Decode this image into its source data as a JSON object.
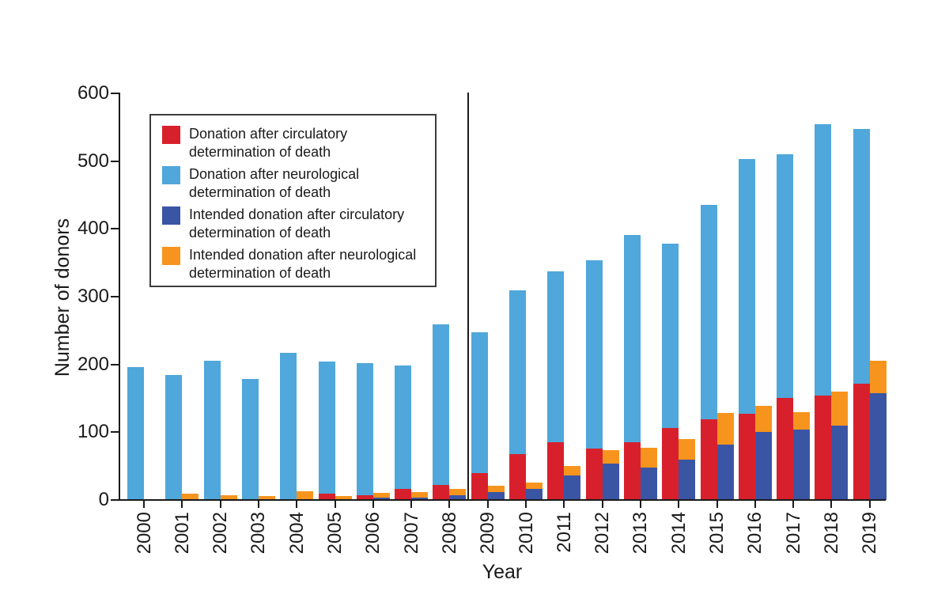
{
  "page": {
    "background": "#ffffff"
  },
  "chart_data": {
    "type": "bar",
    "variant": "grouped-stacked",
    "title": "",
    "xlabel": "Year",
    "ylabel": "Number of donors",
    "ylim": [
      0,
      600
    ],
    "yticks": [
      0,
      100,
      200,
      300,
      400,
      500,
      600
    ],
    "grid": false,
    "legend_position": "upper-left-inside",
    "separator_line_between": [
      "2008",
      "2009"
    ],
    "stacking_note": "values are segment heights; per year two side-by-side stacks: [dcd+dbd] and [idcd+idbd]",
    "categories": [
      "2000",
      "2001",
      "2002",
      "2003",
      "2004",
      "2005",
      "2006",
      "2007",
      "2008",
      "2009",
      "2010",
      "2011",
      "2012",
      "2013",
      "2014",
      "2015",
      "2016",
      "2017",
      "2018",
      "2019"
    ],
    "groups": [
      {
        "name": "donation",
        "stack": [
          "dcd",
          "dbd"
        ]
      },
      {
        "name": "intended-donation",
        "stack": [
          "idcd",
          "idbd"
        ]
      }
    ],
    "series": [
      {
        "id": "dcd",
        "name": "Donation after circulatory determination of death",
        "color": "#D8202C",
        "values": [
          0,
          0,
          0,
          0,
          0,
          9,
          7,
          16,
          22,
          40,
          68,
          85,
          76,
          85,
          106,
          119,
          127,
          151,
          154,
          172
        ]
      },
      {
        "id": "dbd",
        "name": "Donation after neurological determination of death",
        "color": "#4FA7DB",
        "values": [
          196,
          185,
          206,
          179,
          217,
          195,
          195,
          182,
          237,
          207,
          241,
          252,
          278,
          306,
          272,
          316,
          376,
          359,
          400,
          376
        ]
      },
      {
        "id": "idcd",
        "name": "Intended donation after circulatory determination of death",
        "color": "#3B55A5",
        "values": [
          0,
          0,
          0,
          0,
          0,
          0,
          3,
          4,
          7,
          12,
          16,
          36,
          54,
          48,
          60,
          82,
          100,
          104,
          110,
          158
        ]
      },
      {
        "id": "idbd",
        "name": "Intended donation after neurological determination of death",
        "color": "#F7941E",
        "values": [
          0,
          9,
          7,
          6,
          13,
          6,
          7,
          8,
          9,
          9,
          10,
          14,
          20,
          29,
          30,
          46,
          39,
          26,
          50,
          47
        ]
      }
    ],
    "legend_items": [
      {
        "series": "dcd",
        "line1": "Donation after circulatory",
        "line2": "determination of death"
      },
      {
        "series": "dbd",
        "line1": "Donation after neurological",
        "line2": "determination of death"
      },
      {
        "series": "idcd",
        "line1": "Intended donation after circulatory",
        "line2": "determination of death"
      },
      {
        "series": "idbd",
        "line1": "Intended donation after neurological",
        "line2": "determination of death"
      }
    ]
  }
}
